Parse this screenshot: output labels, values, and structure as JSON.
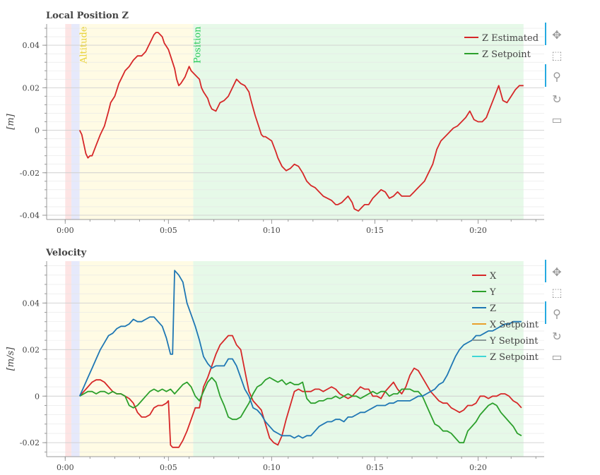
{
  "charts": [
    {
      "title": "Local Position Z",
      "ylabel": "[m]",
      "xticks": [
        "0:00",
        "0:05",
        "0:10",
        "0:15",
        "0:20"
      ],
      "yticks": [
        "0.04",
        "0.02",
        "0",
        "-0.02",
        "-0.04"
      ],
      "mode_labels": [
        "Altitude",
        "Position"
      ],
      "legend": [
        "Z Estimated",
        "Z Setpoint"
      ]
    },
    {
      "title": "Velocity",
      "ylabel": "[m/s]",
      "xticks": [
        "0:00",
        "0:05",
        "0:10",
        "0:15",
        "0:20"
      ],
      "yticks": [
        "0.04",
        "0.02",
        "0",
        "-0.02"
      ],
      "legend": [
        "X",
        "Y",
        "Z",
        "X Setpoint",
        "Y Setpoint",
        "Z Setpoint"
      ]
    }
  ],
  "toolbar_icons": [
    "pan-icon",
    "box-zoom-icon",
    "wheel-zoom-icon",
    "reset-icon",
    "save-icon"
  ],
  "chart_data": [
    {
      "type": "line",
      "title": "Local Position Z",
      "xlabel": "",
      "ylabel": "[m]",
      "x_unit": "seconds",
      "xlim": [
        -9,
        232
      ],
      "ylim": [
        -0.042,
        0.05
      ],
      "legend_position": "top-right",
      "grid": true,
      "mode_regions": [
        {
          "label": "",
          "start": 0,
          "end": 3,
          "color": "#fde4e4"
        },
        {
          "label": "",
          "start": 3,
          "end": 7,
          "color": "#e6e9fb"
        },
        {
          "label": "Altitude",
          "start": 7,
          "end": 62,
          "color": "#fffbe4"
        },
        {
          "label": "Position",
          "start": 62,
          "end": 222,
          "color": "#e6f9e8"
        }
      ],
      "series": [
        {
          "name": "Z Estimated",
          "color": "#d62728",
          "x": [
            7,
            8,
            10,
            11,
            12,
            13,
            15,
            17,
            19,
            21,
            22,
            24,
            26,
            28,
            29,
            31,
            33,
            35,
            37,
            39,
            40,
            42,
            43,
            44,
            45,
            47,
            48,
            50,
            51,
            53,
            54,
            55,
            56,
            58,
            60,
            61,
            62,
            64,
            65,
            66,
            67,
            69,
            70,
            71,
            73,
            74,
            75,
            77,
            79,
            80,
            82,
            83,
            85,
            87,
            89,
            90,
            92,
            94,
            95,
            96,
            97,
            100,
            102,
            103,
            105,
            107,
            109,
            111,
            113,
            115,
            117,
            119,
            121,
            123,
            124,
            125,
            127,
            129,
            131,
            132,
            134,
            135,
            137,
            139,
            140,
            142,
            144,
            145,
            147,
            149,
            151,
            153,
            155,
            157,
            159,
            161,
            163,
            165,
            167,
            169,
            170,
            172,
            174,
            176,
            178,
            180,
            182,
            184,
            186,
            188,
            190,
            192,
            194,
            196,
            198,
            200,
            202,
            204,
            206,
            208,
            210,
            212,
            214,
            216,
            218,
            220,
            222
          ],
          "y": [
            0.0,
            -0.002,
            -0.011,
            -0.013,
            -0.012,
            -0.012,
            -0.007,
            -0.002,
            0.002,
            0.009,
            0.013,
            0.016,
            0.022,
            0.026,
            0.028,
            0.03,
            0.033,
            0.035,
            0.035,
            0.037,
            0.039,
            0.043,
            0.045,
            0.046,
            0.046,
            0.044,
            0.041,
            0.038,
            0.035,
            0.029,
            0.024,
            0.021,
            0.022,
            0.025,
            0.03,
            0.028,
            0.027,
            0.025,
            0.024,
            0.02,
            0.018,
            0.015,
            0.012,
            0.01,
            0.009,
            0.011,
            0.013,
            0.014,
            0.016,
            0.018,
            0.022,
            0.024,
            0.022,
            0.021,
            0.018,
            0.014,
            0.007,
            0.001,
            -0.002,
            -0.003,
            -0.003,
            -0.005,
            -0.01,
            -0.013,
            -0.017,
            -0.019,
            -0.018,
            -0.016,
            -0.017,
            -0.02,
            -0.024,
            -0.026,
            -0.027,
            -0.029,
            -0.03,
            -0.031,
            -0.032,
            -0.033,
            -0.035,
            -0.035,
            -0.034,
            -0.033,
            -0.031,
            -0.034,
            -0.037,
            -0.038,
            -0.036,
            -0.035,
            -0.035,
            -0.032,
            -0.03,
            -0.028,
            -0.029,
            -0.032,
            -0.031,
            -0.029,
            -0.031,
            -0.031,
            -0.031,
            -0.029,
            -0.028,
            -0.026,
            -0.024,
            -0.02,
            -0.016,
            -0.009,
            -0.005,
            -0.003,
            -0.001,
            0.001,
            0.002,
            0.004,
            0.006,
            0.009,
            0.005,
            0.004,
            0.004,
            0.006,
            0.011,
            0.016,
            0.021,
            0.014,
            0.013,
            0.016,
            0.019,
            0.021,
            0.021
          ]
        },
        {
          "name": "Z Setpoint",
          "color": "#2ca02c",
          "x": [],
          "y": []
        }
      ]
    },
    {
      "type": "line",
      "title": "Velocity",
      "xlabel": "",
      "ylabel": "[m/s]",
      "x_unit": "seconds",
      "xlim": [
        -9,
        232
      ],
      "ylim": [
        -0.026,
        0.058
      ],
      "legend_position": "top-right",
      "grid": true,
      "mode_regions": [
        {
          "label": "",
          "start": 0,
          "end": 3,
          "color": "#fde4e4"
        },
        {
          "label": "",
          "start": 3,
          "end": 7,
          "color": "#e6e9fb"
        },
        {
          "label": "",
          "start": 7,
          "end": 62,
          "color": "#fffbe4"
        },
        {
          "label": "",
          "start": 62,
          "end": 222,
          "color": "#e6f9e8"
        }
      ],
      "series": [
        {
          "name": "X",
          "color": "#d62728",
          "x": [
            7,
            9,
            11,
            13,
            15,
            17,
            19,
            21,
            23,
            25,
            27,
            29,
            31,
            33,
            35,
            37,
            39,
            41,
            43,
            45,
            47,
            49,
            50,
            51,
            52,
            53,
            55,
            57,
            59,
            61,
            63,
            65,
            67,
            69,
            71,
            73,
            75,
            77,
            79,
            81,
            83,
            85,
            87,
            89,
            91,
            93,
            95,
            97,
            99,
            101,
            103,
            105,
            107,
            109,
            111,
            113,
            115,
            117,
            119,
            121,
            123,
            125,
            127,
            129,
            131,
            133,
            135,
            137,
            139,
            141,
            143,
            145,
            147,
            149,
            151,
            153,
            155,
            157,
            159,
            161,
            163,
            165,
            167,
            169,
            171,
            173,
            175,
            177,
            179,
            181,
            183,
            185,
            187,
            189,
            191,
            193,
            195,
            197,
            199,
            201,
            203,
            205,
            207,
            209,
            211,
            213,
            215,
            217,
            219,
            221
          ],
          "y": [
            0.0,
            0.002,
            0.004,
            0.006,
            0.007,
            0.007,
            0.006,
            0.004,
            0.002,
            0.001,
            0.001,
            0.0,
            -0.001,
            -0.003,
            -0.007,
            -0.009,
            -0.009,
            -0.008,
            -0.005,
            -0.004,
            -0.004,
            -0.003,
            -0.002,
            -0.021,
            -0.022,
            -0.022,
            -0.022,
            -0.019,
            -0.015,
            -0.01,
            -0.005,
            -0.005,
            0.004,
            0.008,
            0.013,
            0.018,
            0.022,
            0.024,
            0.026,
            0.026,
            0.022,
            0.02,
            0.011,
            0.002,
            -0.002,
            -0.004,
            -0.006,
            -0.012,
            -0.018,
            -0.02,
            -0.021,
            -0.017,
            -0.01,
            -0.004,
            0.002,
            0.003,
            0.002,
            0.002,
            0.002,
            0.003,
            0.003,
            0.002,
            0.003,
            0.004,
            0.003,
            0.001,
            0.0,
            -0.001,
            0.0,
            0.002,
            0.004,
            0.003,
            0.003,
            0.0,
            0.0,
            -0.001,
            0.002,
            0.004,
            0.006,
            0.003,
            0.001,
            0.004,
            0.009,
            0.012,
            0.011,
            0.008,
            0.005,
            0.002,
            0.0,
            -0.002,
            -0.003,
            -0.003,
            -0.005,
            -0.006,
            -0.007,
            -0.006,
            -0.004,
            -0.004,
            -0.003,
            0.0,
            0.0,
            -0.001,
            0.0,
            0.0,
            0.001,
            0.001,
            0.0,
            -0.002,
            -0.003,
            -0.005
          ]
        },
        {
          "name": "Y",
          "color": "#2ca02c",
          "x": [
            7,
            9,
            11,
            13,
            15,
            17,
            19,
            21,
            23,
            25,
            27,
            29,
            31,
            33,
            35,
            37,
            39,
            41,
            43,
            45,
            47,
            49,
            51,
            53,
            55,
            57,
            59,
            61,
            63,
            65,
            67,
            69,
            71,
            73,
            75,
            77,
            79,
            81,
            83,
            85,
            87,
            89,
            91,
            93,
            95,
            97,
            99,
            101,
            103,
            105,
            107,
            109,
            111,
            113,
            115,
            117,
            119,
            121,
            123,
            125,
            127,
            129,
            131,
            133,
            135,
            137,
            139,
            141,
            143,
            145,
            147,
            149,
            151,
            153,
            155,
            157,
            159,
            161,
            163,
            165,
            167,
            169,
            171,
            173,
            175,
            177,
            179,
            181,
            183,
            185,
            187,
            189,
            191,
            193,
            195,
            197,
            199,
            201,
            203,
            205,
            207,
            209,
            211,
            213,
            215,
            217,
            219,
            221
          ],
          "y": [
            0.0,
            0.001,
            0.002,
            0.002,
            0.001,
            0.002,
            0.002,
            0.001,
            0.002,
            0.001,
            0.001,
            0.0,
            -0.004,
            -0.005,
            -0.004,
            -0.002,
            0.0,
            0.002,
            0.003,
            0.002,
            0.003,
            0.002,
            0.003,
            0.001,
            0.003,
            0.005,
            0.006,
            0.004,
            0.0,
            -0.002,
            0.002,
            0.006,
            0.008,
            0.006,
            0.0,
            -0.004,
            -0.009,
            -0.01,
            -0.01,
            -0.009,
            -0.006,
            -0.003,
            0.001,
            0.004,
            0.005,
            0.007,
            0.008,
            0.007,
            0.006,
            0.007,
            0.005,
            0.006,
            0.005,
            0.005,
            0.006,
            -0.001,
            -0.003,
            -0.003,
            -0.002,
            -0.002,
            -0.001,
            -0.001,
            0.0,
            -0.001,
            0.0,
            0.001,
            0.0,
            0.0,
            -0.001,
            0.0,
            0.001,
            0.002,
            0.001,
            0.002,
            0.002,
            0.0,
            0.001,
            0.001,
            0.003,
            0.003,
            0.003,
            0.002,
            0.002,
            0.0,
            -0.004,
            -0.008,
            -0.012,
            -0.013,
            -0.015,
            -0.015,
            -0.016,
            -0.018,
            -0.02,
            -0.02,
            -0.015,
            -0.013,
            -0.011,
            -0.008,
            -0.006,
            -0.004,
            -0.003,
            -0.004,
            -0.007,
            -0.009,
            -0.011,
            -0.013,
            -0.016,
            -0.017
          ]
        },
        {
          "name": "Z",
          "color": "#1f77b4",
          "x": [
            7,
            9,
            11,
            13,
            15,
            17,
            19,
            21,
            23,
            25,
            27,
            29,
            31,
            33,
            35,
            37,
            39,
            41,
            43,
            45,
            47,
            49,
            51,
            52,
            53,
            55,
            57,
            59,
            61,
            63,
            65,
            67,
            69,
            71,
            73,
            75,
            77,
            79,
            81,
            83,
            85,
            87,
            89,
            91,
            93,
            95,
            97,
            99,
            101,
            103,
            105,
            107,
            109,
            111,
            113,
            115,
            117,
            119,
            121,
            123,
            125,
            127,
            129,
            131,
            133,
            135,
            137,
            139,
            141,
            143,
            145,
            147,
            149,
            151,
            153,
            155,
            157,
            159,
            161,
            163,
            165,
            167,
            169,
            171,
            173,
            175,
            177,
            179,
            181,
            183,
            185,
            187,
            189,
            191,
            193,
            195,
            197,
            199,
            201,
            203,
            205,
            207,
            209,
            211,
            213,
            215,
            217,
            219,
            221
          ],
          "y": [
            0.0,
            0.004,
            0.008,
            0.012,
            0.016,
            0.02,
            0.023,
            0.026,
            0.027,
            0.029,
            0.03,
            0.03,
            0.031,
            0.033,
            0.032,
            0.032,
            0.033,
            0.034,
            0.034,
            0.032,
            0.03,
            0.025,
            0.018,
            0.018,
            0.054,
            0.052,
            0.049,
            0.04,
            0.035,
            0.03,
            0.024,
            0.017,
            0.014,
            0.012,
            0.013,
            0.013,
            0.013,
            0.016,
            0.016,
            0.013,
            0.008,
            0.003,
            0.0,
            -0.005,
            -0.006,
            -0.008,
            -0.011,
            -0.013,
            -0.015,
            -0.016,
            -0.017,
            -0.017,
            -0.017,
            -0.018,
            -0.017,
            -0.018,
            -0.017,
            -0.017,
            -0.015,
            -0.013,
            -0.012,
            -0.011,
            -0.011,
            -0.01,
            -0.01,
            -0.011,
            -0.009,
            -0.009,
            -0.008,
            -0.007,
            -0.007,
            -0.006,
            -0.005,
            -0.004,
            -0.004,
            -0.004,
            -0.003,
            -0.003,
            -0.002,
            -0.002,
            -0.002,
            -0.002,
            -0.001,
            0.0,
            0.0,
            0.001,
            0.002,
            0.003,
            0.005,
            0.006,
            0.009,
            0.013,
            0.017,
            0.02,
            0.022,
            0.023,
            0.024,
            0.026,
            0.026,
            0.027,
            0.028,
            0.028,
            0.029,
            0.03,
            0.031,
            0.031,
            0.032,
            0.032,
            0.032
          ]
        },
        {
          "name": "X Setpoint",
          "color": "#e9a02c",
          "x": [],
          "y": []
        },
        {
          "name": "Y Setpoint",
          "color": "#8c9a99",
          "x": [],
          "y": []
        },
        {
          "name": "Z Setpoint",
          "color": "#3fd6d6",
          "x": [],
          "y": []
        }
      ]
    }
  ]
}
